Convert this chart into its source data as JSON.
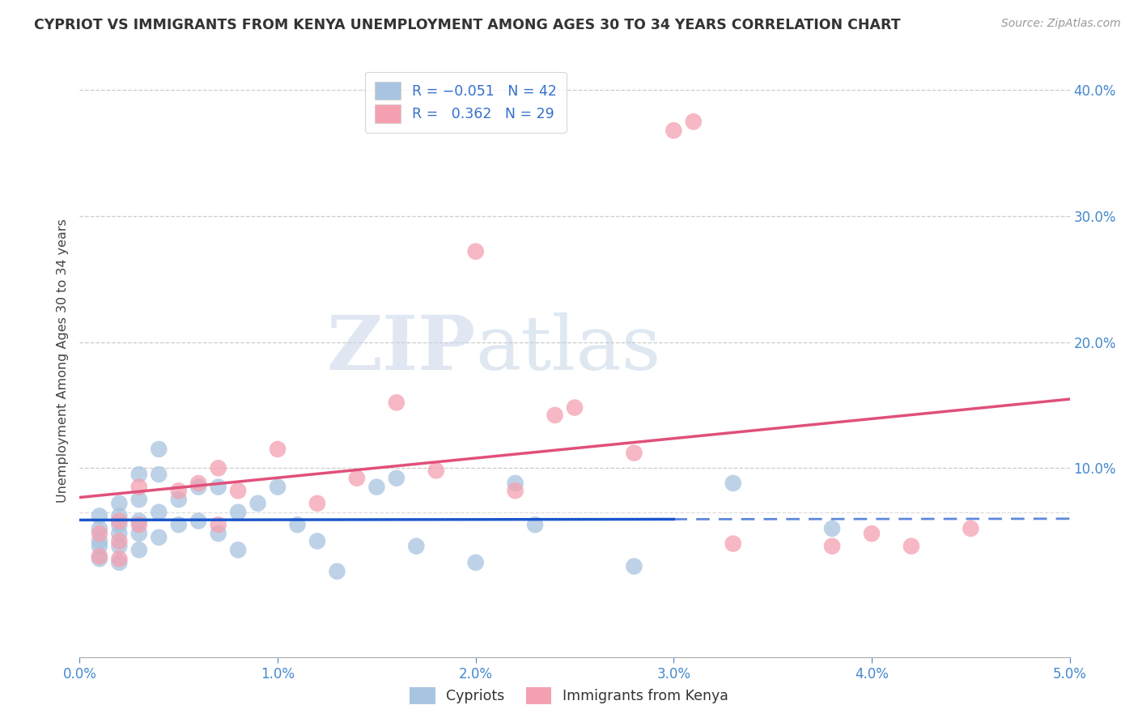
{
  "title": "CYPRIOT VS IMMIGRANTS FROM KENYA UNEMPLOYMENT AMONG AGES 30 TO 34 YEARS CORRELATION CHART",
  "source": "Source: ZipAtlas.com",
  "ylabel": "Unemployment Among Ages 30 to 34 years",
  "xmin": 0.0,
  "xmax": 0.05,
  "ymin": -0.05,
  "ymax": 0.42,
  "x_ticks": [
    0.0,
    0.01,
    0.02,
    0.03,
    0.04,
    0.05
  ],
  "x_tick_labels": [
    "0.0%",
    "1.0%",
    "2.0%",
    "3.0%",
    "4.0%",
    "5.0%"
  ],
  "y_ticks": [
    0.0,
    0.1,
    0.2,
    0.3,
    0.4
  ],
  "y_tick_labels": [
    "",
    "10.0%",
    "20.0%",
    "30.0%",
    "40.0%"
  ],
  "cypriot_R": -0.051,
  "cypriot_N": 42,
  "kenya_R": 0.362,
  "kenya_N": 29,
  "cypriot_color": "#a8c4e0",
  "kenya_color": "#f4a0b0",
  "cypriot_line_color": "#1a56cc",
  "kenya_line_color": "#e0507a",
  "legend_label_cypriot": "Cypriots",
  "legend_label_kenya": "Immigrants from Kenya",
  "cypriot_x": [
    0.001,
    0.001,
    0.001,
    0.001,
    0.001,
    0.002,
    0.002,
    0.002,
    0.002,
    0.002,
    0.002,
    0.003,
    0.003,
    0.003,
    0.003,
    0.003,
    0.004,
    0.004,
    0.004,
    0.004,
    0.005,
    0.005,
    0.006,
    0.006,
    0.007,
    0.007,
    0.008,
    0.008,
    0.009,
    0.01,
    0.011,
    0.012,
    0.013,
    0.015,
    0.016,
    0.017,
    0.02,
    0.022,
    0.023,
    0.028,
    0.033,
    0.038
  ],
  "cypriot_y": [
    0.062,
    0.052,
    0.042,
    0.038,
    0.028,
    0.072,
    0.062,
    0.055,
    0.048,
    0.038,
    0.025,
    0.095,
    0.075,
    0.058,
    0.048,
    0.035,
    0.115,
    0.095,
    0.065,
    0.045,
    0.075,
    0.055,
    0.085,
    0.058,
    0.085,
    0.048,
    0.065,
    0.035,
    0.072,
    0.085,
    0.055,
    0.042,
    0.018,
    0.085,
    0.092,
    0.038,
    0.025,
    0.088,
    0.055,
    0.022,
    0.088,
    0.052
  ],
  "kenya_x": [
    0.001,
    0.001,
    0.002,
    0.002,
    0.002,
    0.003,
    0.003,
    0.005,
    0.006,
    0.007,
    0.007,
    0.008,
    0.01,
    0.012,
    0.014,
    0.016,
    0.018,
    0.02,
    0.022,
    0.024,
    0.025,
    0.028,
    0.03,
    0.031,
    0.033,
    0.038,
    0.04,
    0.042,
    0.045
  ],
  "kenya_y": [
    0.048,
    0.03,
    0.058,
    0.042,
    0.028,
    0.085,
    0.055,
    0.082,
    0.088,
    0.1,
    0.055,
    0.082,
    0.115,
    0.072,
    0.092,
    0.152,
    0.098,
    0.272,
    0.082,
    0.142,
    0.148,
    0.112,
    0.368,
    0.375,
    0.04,
    0.038,
    0.048,
    0.038,
    0.052
  ],
  "watermark_zip": "ZIP",
  "watermark_atlas": "atlas",
  "background_color": "#ffffff",
  "grid_color": "#cccccc",
  "trendline_dash_start": 0.03
}
